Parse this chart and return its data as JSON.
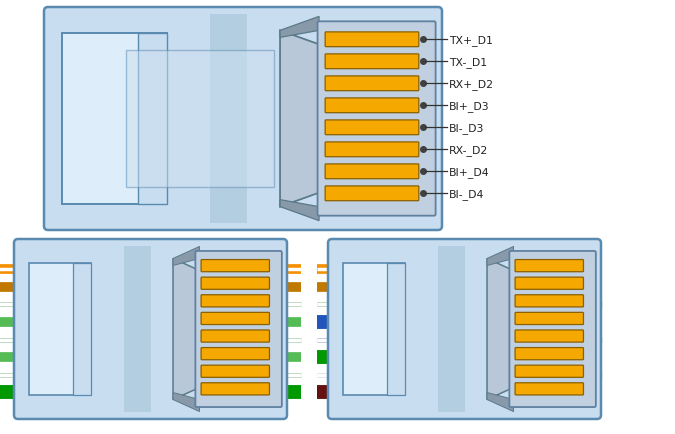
{
  "fig_bg": "#ffffff",
  "body_fill": "#c8ddf0",
  "body_edge": "#5a8ab0",
  "inner_fill": "#ddeefa",
  "stripe_fill": "#b0ccdf",
  "trap_fill": "#b8c8d8",
  "trap_edge": "#5a7a8a",
  "ph_fill": "#c0d0e0",
  "ph_edge": "#6080a0",
  "pin_fill": "#f5a800",
  "pin_edge": "#8a6000",
  "dot_color": "#404040",
  "label_color": "#222222",
  "line_color": "#333333",
  "labels": [
    "TX+_D1",
    "TX-_D1",
    "RX+_D2",
    "BI+_D3",
    "BI-_D3",
    "RX-_D2",
    "BI+_D4",
    "BI-_D4"
  ],
  "bl_wire_colors": [
    "#f59000",
    "#c07800",
    "#ffffff",
    "#55bb55",
    "#ffffff",
    "#55bb55",
    "#ffffff",
    "#009900"
  ],
  "bl_wire_lws": [
    7,
    7,
    1.5,
    3,
    1.5,
    3,
    1.5,
    9
  ],
  "bl_wire_colors2": [
    "#f59000",
    "#c07800",
    "#aad0aa",
    "#55bb55",
    "#aad0aa",
    "#55bb55",
    "#aad0aa",
    "#009900"
  ],
  "bl_wire_lws2": [
    5,
    5,
    5,
    5,
    5,
    5,
    5,
    7
  ],
  "br_wire_colors": [
    "#f59000",
    "#c07800",
    "#aad0aa",
    "#2255bb",
    "#aabbdd",
    "#009900",
    "#aabbdd",
    "#661111"
  ],
  "br_wire_lws": [
    5,
    5,
    3,
    7,
    3,
    7,
    3,
    7
  ]
}
